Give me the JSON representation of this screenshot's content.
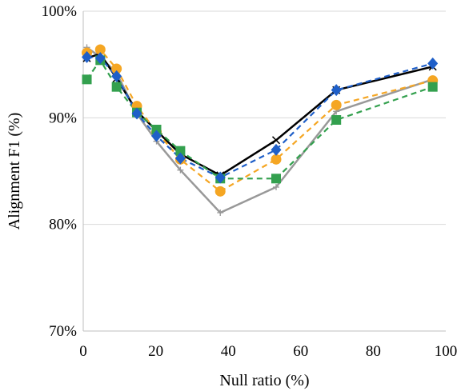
{
  "chart_data": {
    "type": "line",
    "title": "",
    "xlabel": "Null ratio (%)",
    "ylabel": "Alignment F1 (%)",
    "xlim": [
      0,
      100
    ],
    "ylim": [
      70,
      100
    ],
    "xticks": [
      0,
      20,
      40,
      60,
      80,
      100
    ],
    "yticks": [
      70,
      80,
      90,
      100
    ],
    "ytick_labels": [
      "70%",
      "80%",
      "90%",
      "100%"
    ],
    "grid": "horizontal",
    "legend": "none",
    "series": [
      {
        "color": "#999999",
        "line": "solid",
        "marker": "plus",
        "x": [
          1,
          4.7,
          9.2,
          14.8,
          20.2,
          26.8,
          37.8,
          53.2,
          69.8,
          96.4
        ],
        "y": [
          96.6,
          95.7,
          94.2,
          90.4,
          87.8,
          85.1,
          81.1,
          83.5,
          90.6,
          93.6
        ]
      },
      {
        "color": "#000000",
        "line": "solid",
        "marker": "x",
        "x": [
          1,
          4.7,
          9.2,
          14.8,
          20.2,
          26.8,
          37.8,
          53.2,
          69.8,
          96.4
        ],
        "y": [
          95.6,
          96.0,
          93.7,
          90.6,
          88.8,
          86.6,
          84.6,
          87.9,
          92.6,
          94.8
        ]
      },
      {
        "color": "#F5A623",
        "line": "dashed",
        "marker": "circle",
        "x": [
          1,
          4.7,
          9.2,
          14.8,
          20.2,
          26.8,
          37.8,
          53.2,
          69.8,
          96.4
        ],
        "y": [
          96.1,
          96.4,
          94.6,
          91.1,
          88.7,
          86.1,
          83.1,
          86.1,
          91.2,
          93.5
        ]
      },
      {
        "color": "#33A04E",
        "line": "dashed",
        "marker": "square",
        "x": [
          1,
          4.7,
          9.2,
          14.8,
          20.2,
          26.8,
          37.8,
          53.2,
          69.8,
          96.4
        ],
        "y": [
          93.6,
          95.4,
          92.9,
          90.5,
          88.9,
          86.9,
          84.3,
          84.3,
          89.8,
          92.9
        ]
      },
      {
        "color": "#1F5FC8",
        "line": "dashed",
        "marker": "diamond",
        "x": [
          1,
          4.7,
          9.2,
          14.8,
          20.2,
          26.8,
          37.8,
          53.2,
          69.8,
          96.4
        ],
        "y": [
          95.7,
          95.6,
          93.9,
          90.4,
          88.3,
          86.2,
          84.4,
          87.0,
          92.6,
          95.1
        ]
      }
    ]
  }
}
